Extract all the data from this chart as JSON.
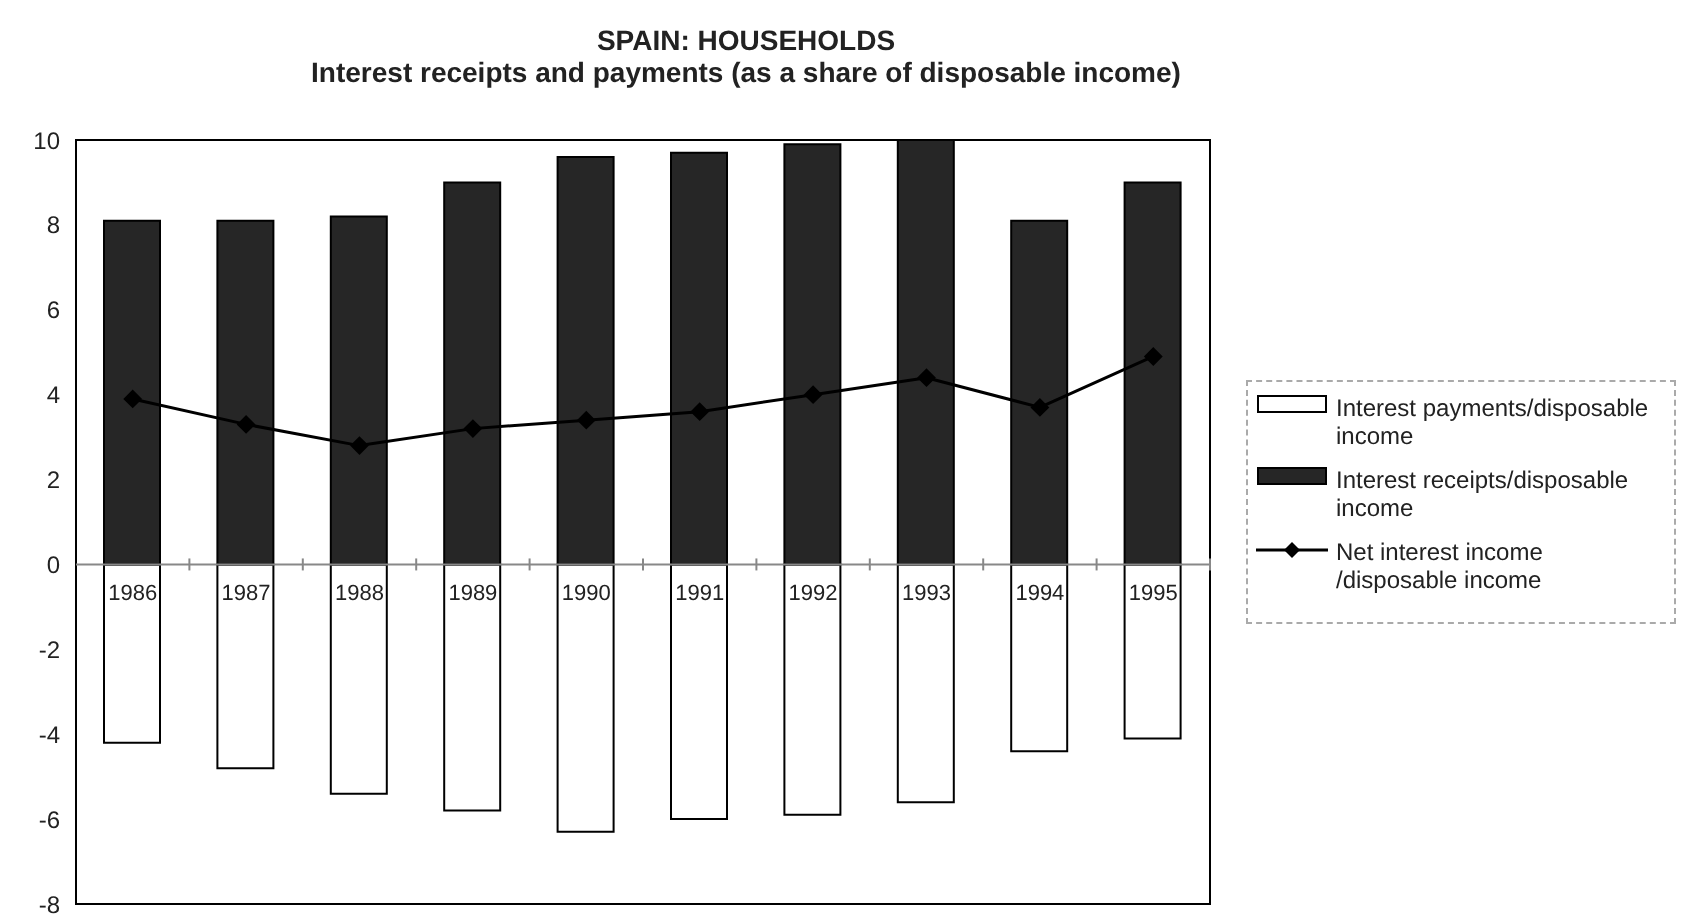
{
  "chart_data": {
    "type": "bar",
    "title": "SPAIN: HOUSEHOLDS",
    "subtitle": "Interest receipts and payments (as a share of disposable income)",
    "categories": [
      "1986",
      "1987",
      "1988",
      "1989",
      "1990",
      "1991",
      "1992",
      "1993",
      "1994",
      "1995"
    ],
    "stacked": true,
    "series": [
      {
        "name": "Interest payments/disposable income",
        "color": "#ffffff",
        "values": [
          -4.2,
          -4.8,
          -5.4,
          -5.8,
          -6.3,
          -6.0,
          -5.9,
          -5.6,
          -4.4,
          -4.1
        ]
      },
      {
        "name": "Interest receipts/disposable income",
        "color": "#262626",
        "values": [
          8.1,
          8.1,
          8.2,
          9.0,
          9.6,
          9.7,
          9.9,
          10.0,
          8.1,
          9.0
        ]
      },
      {
        "name": "Net interest income /disposable income",
        "type": "line",
        "color": "#000000",
        "marker": "diamond",
        "values": [
          3.9,
          3.3,
          2.8,
          3.2,
          3.4,
          3.6,
          4.0,
          4.4,
          3.7,
          4.9
        ]
      }
    ],
    "ylim": [
      -8,
      10
    ],
    "yticks": [
      -8,
      -6,
      -4,
      -2,
      0,
      2,
      4,
      6,
      8,
      10
    ],
    "legend": "right"
  }
}
